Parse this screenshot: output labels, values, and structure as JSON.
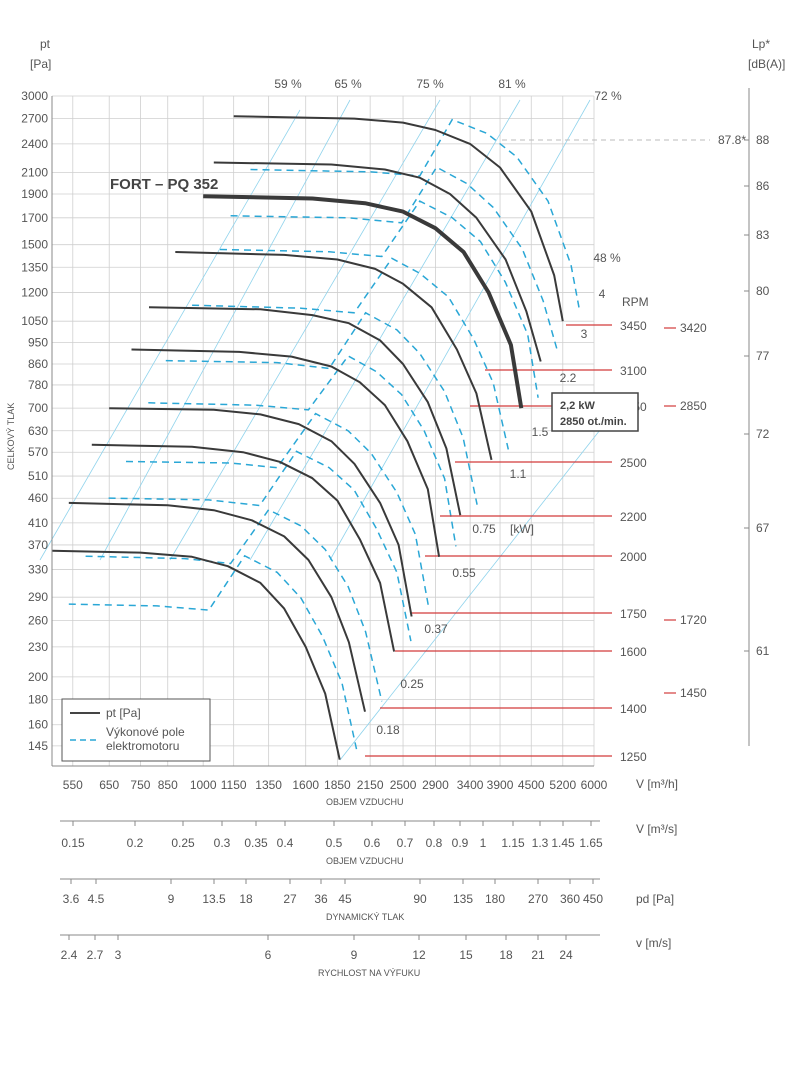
{
  "chart_data": {
    "type": "line",
    "title": "FORT – PQ 352",
    "y_left": {
      "label": "pt",
      "unit": "[Pa]",
      "side_label": "CELKOVÝ TLAK",
      "ticks": [
        3000,
        2700,
        2400,
        2100,
        1900,
        1700,
        1500,
        1350,
        1200,
        1050,
        950,
        860,
        780,
        700,
        630,
        570,
        510,
        460,
        410,
        370,
        330,
        290,
        260,
        230,
        200,
        180,
        160,
        145
      ]
    },
    "y_right": {
      "label": "Lp*",
      "unit": "[dB(A)]",
      "ticks": [
        88,
        86,
        83,
        80,
        77,
        72,
        67,
        61
      ],
      "marker": "87.8*"
    },
    "x_axes": [
      {
        "unit": "V [m³/h]",
        "title": "OBJEM VZDUCHU",
        "ticks": [
          "550",
          "650",
          "750",
          "850",
          "1000",
          "1150",
          "1350",
          "1600",
          "1850",
          "2150",
          "2500",
          "2900",
          "3400",
          "3900",
          "4500",
          "5200",
          "6000"
        ]
      },
      {
        "unit": "V  [m³/s]",
        "title": "OBJEM VZDUCHU",
        "ticks": [
          "0.15",
          "0.2",
          "0.25",
          "0.3",
          "0.35",
          "0.4",
          "0.5",
          "0.6",
          "0.7",
          "0.8",
          "0.9",
          "1",
          "1.15",
          "1.3",
          "1.45",
          "1.65"
        ]
      },
      {
        "unit": "pd  [Pa]",
        "title": "DYNAMICKÝ TLAK",
        "ticks": [
          "3.6",
          "4.5",
          "9",
          "13.5",
          "18",
          "27",
          "36",
          "45",
          "90",
          "135",
          "180",
          "270",
          "360",
          "450"
        ]
      },
      {
        "unit": "v  [m/s]",
        "title": "RYCHLOST NA VÝFUKU",
        "ticks": [
          "2.4",
          "2.7",
          "3",
          "6",
          "9",
          "12",
          "15",
          "18",
          "21",
          "24"
        ]
      }
    ],
    "efficiency_labels": [
      "59 %",
      "65 %",
      "75 %",
      "81 %",
      "72 %",
      "48 %"
    ],
    "rpm_header": "RPM",
    "rpm_values": [
      "3450",
      "3100",
      "2850",
      "2500",
      "2200",
      "2000",
      "1750",
      "1600",
      "1400",
      "1250"
    ],
    "rpm_right_values": [
      "3420",
      "2850",
      "1720",
      "1450"
    ],
    "kw_values": [
      "4",
      "3",
      "2.2",
      "1.5",
      "1.1",
      "0.75",
      "0.55",
      "0.37",
      "0.25",
      "0.18"
    ],
    "kw_unit": "[kW]",
    "callout": [
      "2,2 kW",
      "2850 ot./min."
    ],
    "legend": [
      "pt [Pa]",
      "Výkonové pole",
      "elektromotoru"
    ],
    "series": [
      {
        "rpm": "3450",
        "x": [
          1150,
          2000,
          2500,
          2900,
          3400,
          3900,
          4500,
          5000,
          5200
        ],
        "y": [
          2730,
          2700,
          2650,
          2560,
          2400,
          2150,
          1750,
          1300,
          1050
        ]
      },
      {
        "rpm": "3100",
        "x": [
          1050,
          1800,
          2300,
          2700,
          3100,
          3500,
          4000,
          4400,
          4700
        ],
        "y": [
          2200,
          2180,
          2130,
          2050,
          1900,
          1700,
          1400,
          1100,
          870
        ]
      },
      {
        "rpm": "2850",
        "x": [
          1000,
          1650,
          2100,
          2500,
          2900,
          3300,
          3700,
          4100,
          4300
        ],
        "y": [
          1880,
          1860,
          1820,
          1750,
          1620,
          1450,
          1200,
          940,
          700
        ]
      },
      {
        "rpm": "2500",
        "x": [
          880,
          1450,
          1850,
          2200,
          2500,
          2850,
          3200,
          3500,
          3750
        ],
        "y": [
          1450,
          1430,
          1400,
          1340,
          1250,
          1120,
          920,
          750,
          550
        ]
      },
      {
        "rpm": "2200",
        "x": [
          780,
          1300,
          1650,
          1950,
          2250,
          2500,
          2800,
          3050,
          3250
        ],
        "y": [
          1120,
          1110,
          1080,
          1040,
          960,
          860,
          720,
          580,
          425
        ]
      },
      {
        "rpm": "2000",
        "x": [
          720,
          1180,
          1500,
          1800,
          2050,
          2300,
          2550,
          2800,
          2950
        ],
        "y": [
          920,
          910,
          890,
          850,
          790,
          710,
          600,
          480,
          350
        ]
      },
      {
        "rpm": "1750",
        "x": [
          650,
          1050,
          1300,
          1550,
          1800,
          2000,
          2250,
          2450,
          2600
        ],
        "y": [
          700,
          695,
          680,
          650,
          600,
          540,
          450,
          370,
          265
        ]
      },
      {
        "rpm": "1600",
        "x": [
          600,
          950,
          1200,
          1420,
          1650,
          1850,
          2050,
          2250,
          2400
        ],
        "y": [
          590,
          585,
          570,
          545,
          505,
          455,
          380,
          310,
          225
        ]
      },
      {
        "rpm": "1400",
        "x": [
          540,
          850,
          1050,
          1250,
          1450,
          1620,
          1800,
          1950,
          2100
        ],
        "y": [
          450,
          445,
          435,
          415,
          385,
          345,
          290,
          235,
          170
        ]
      },
      {
        "rpm": "1250",
        "x": [
          500,
          750,
          950,
          1120,
          1300,
          1450,
          1600,
          1750,
          1870
        ],
        "y": [
          360,
          357,
          350,
          335,
          310,
          275,
          230,
          185,
          136
        ]
      }
    ]
  }
}
